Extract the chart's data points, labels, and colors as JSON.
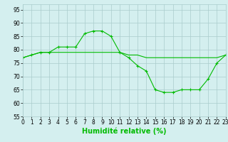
{
  "line1_x": [
    0,
    1,
    2,
    3,
    4,
    5,
    6,
    7,
    8,
    9,
    10,
    11,
    12,
    13,
    14,
    15,
    16,
    17,
    18,
    19,
    20,
    21,
    22,
    23
  ],
  "line1_y": [
    77,
    78,
    79,
    79,
    81,
    81,
    81,
    86,
    87,
    87,
    85,
    79,
    77,
    74,
    72,
    65,
    64,
    64,
    65,
    65,
    65,
    69,
    75,
    78
  ],
  "line2_x": [
    0,
    1,
    2,
    3,
    4,
    5,
    6,
    7,
    8,
    9,
    10,
    11,
    12,
    13,
    14,
    15,
    16,
    17,
    18,
    19,
    20,
    21,
    22,
    23
  ],
  "line2_y": [
    77,
    78,
    79,
    79,
    79,
    79,
    79,
    79,
    79,
    79,
    79,
    79,
    78,
    78,
    77,
    77,
    77,
    77,
    77,
    77,
    77,
    77,
    77,
    78
  ],
  "line_color": "#00bb00",
  "bg_color": "#d4efef",
  "grid_color": "#aacccc",
  "marker": "+",
  "xlabel": "Humidité relative (%)",
  "xlim": [
    0,
    23
  ],
  "ylim": [
    55,
    97
  ],
  "yticks": [
    55,
    60,
    65,
    70,
    75,
    80,
    85,
    90,
    95
  ],
  "xticks": [
    0,
    1,
    2,
    3,
    4,
    5,
    6,
    7,
    8,
    9,
    10,
    11,
    12,
    13,
    14,
    15,
    16,
    17,
    18,
    19,
    20,
    21,
    22,
    23
  ],
  "xlabel_fontsize": 7,
  "tick_fontsize": 5.5
}
